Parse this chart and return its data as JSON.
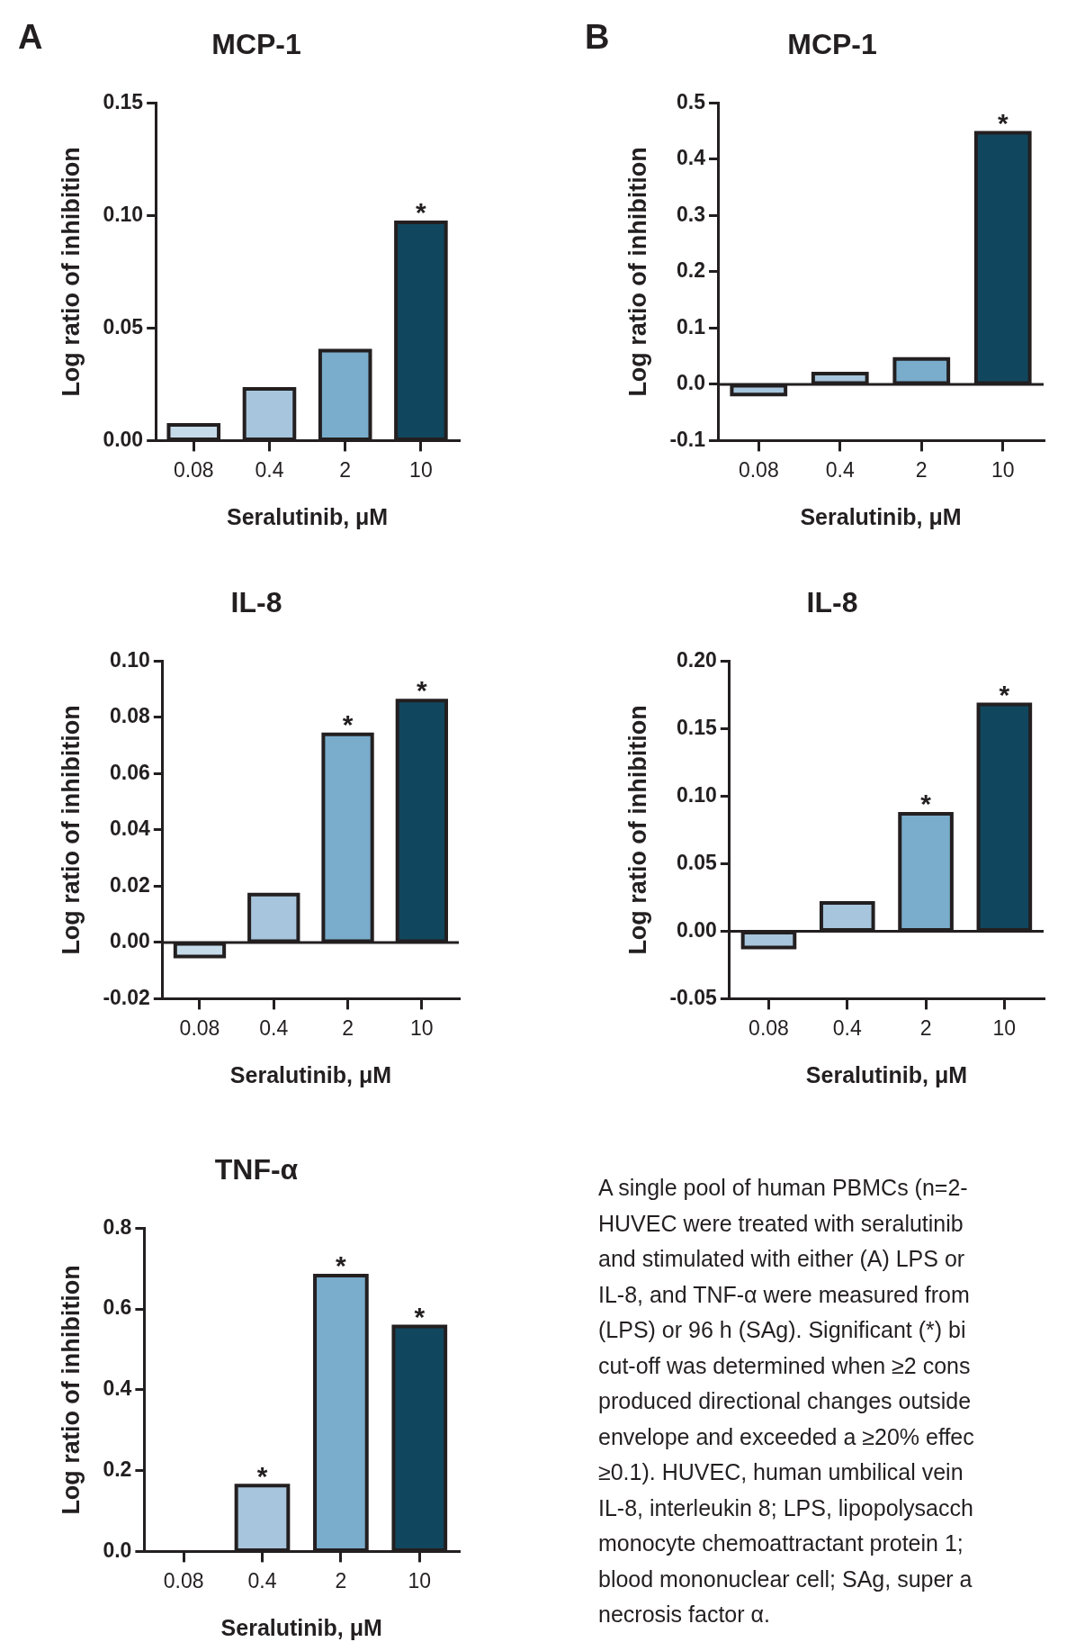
{
  "chart_data": [
    {
      "type": "bar",
      "title": "MCP-1",
      "xlabel": "Seralutinib, μM",
      "ylabel": "Log ratio of inhibition",
      "categories": [
        "0.08",
        "0.4",
        "2",
        "10"
      ],
      "values": [
        0.007,
        0.023,
        0.04,
        0.097
      ],
      "colors": [
        "#c5dbea",
        "#a7c5dc",
        "#7aaccb",
        "#11475e"
      ],
      "ylim": [
        0,
        0.15
      ],
      "yticks": [
        {
          "value": 0,
          "label": "0.00"
        },
        {
          "value": 0.05,
          "label": "0.05"
        },
        {
          "value": 0.1,
          "label": "0.10"
        },
        {
          "value": 0.15,
          "label": "0.15"
        }
      ],
      "annotations": [
        "A",
        {
          "text": "*",
          "x": "10",
          "y": 0.097
        }
      ]
    },
    {
      "type": "bar",
      "title": "MCP-1",
      "xlabel": "Seralutinib, μM",
      "ylabel": "Log ratio of inhibition",
      "categories": [
        "0.08",
        "0.4",
        "2",
        "10"
      ],
      "values": [
        -0.018,
        0.019,
        0.045,
        0.447
      ],
      "colors": [
        "#a7c5dc",
        "#a7c5dc",
        "#7aaccb",
        "#11475e"
      ],
      "ylim": [
        -0.1,
        0.5
      ],
      "yticks": [
        {
          "value": -0.1,
          "label": "-0.1"
        },
        {
          "value": 0,
          "label": "0.0"
        },
        {
          "value": 0.1,
          "label": "0.1"
        },
        {
          "value": 0.2,
          "label": "0.2"
        },
        {
          "value": 0.3,
          "label": "0.3"
        },
        {
          "value": 0.4,
          "label": "0.4"
        },
        {
          "value": 0.5,
          "label": "0.5"
        }
      ],
      "annotations": [
        "B",
        {
          "text": "*",
          "x": "10",
          "y": 0.447
        }
      ]
    },
    {
      "type": "bar",
      "title": "IL-8",
      "xlabel": "Seralutinib, μM",
      "ylabel": "Log ratio of inhibition",
      "categories": [
        "0.08",
        "0.4",
        "2",
        "10"
      ],
      "values": [
        -0.005,
        0.017,
        0.074,
        0.086
      ],
      "colors": [
        "#c5dbea",
        "#a7c5dc",
        "#7aaccb",
        "#11475e"
      ],
      "ylim": [
        -0.02,
        0.1
      ],
      "yticks": [
        {
          "value": -0.02,
          "label": "-0.02"
        },
        {
          "value": 0,
          "label": "0.00"
        },
        {
          "value": 0.02,
          "label": "0.02"
        },
        {
          "value": 0.04,
          "label": "0.04"
        },
        {
          "value": 0.06,
          "label": "0.06"
        },
        {
          "value": 0.08,
          "label": "0.08"
        },
        {
          "value": 0.1,
          "label": "0.10"
        }
      ],
      "annotations": [
        {
          "text": "*",
          "x": "2",
          "y": 0.074
        },
        {
          "text": "*",
          "x": "10",
          "y": 0.086
        }
      ]
    },
    {
      "type": "bar",
      "title": "IL-8",
      "xlabel": "Seralutinib, μM",
      "ylabel": "Log ratio of inhibition",
      "categories": [
        "0.08",
        "0.4",
        "2",
        "10"
      ],
      "values": [
        -0.012,
        0.021,
        0.087,
        0.168
      ],
      "colors": [
        "#a7c5dc",
        "#a7c5dc",
        "#7aaccb",
        "#11475e"
      ],
      "ylim": [
        -0.05,
        0.2
      ],
      "yticks": [
        {
          "value": -0.05,
          "label": "-0.05"
        },
        {
          "value": 0,
          "label": "0.00"
        },
        {
          "value": 0.05,
          "label": "0.05"
        },
        {
          "value": 0.1,
          "label": "0.10"
        },
        {
          "value": 0.15,
          "label": "0.15"
        },
        {
          "value": 0.2,
          "label": "0.20"
        }
      ],
      "annotations": [
        {
          "text": "*",
          "x": "2",
          "y": 0.087
        },
        {
          "text": "*",
          "x": "10",
          "y": 0.168
        }
      ]
    },
    {
      "type": "bar",
      "title": "TNF-α",
      "xlabel": "Seralutinib, μM",
      "ylabel": "Log ratio of inhibition",
      "categories": [
        "0.08",
        "0.4",
        "2",
        "10"
      ],
      "values": [
        null,
        0.163,
        0.683,
        0.557
      ],
      "colors": [
        "#c5dbea",
        "#a7c5dc",
        "#7aaccb",
        "#11475e"
      ],
      "ylim": [
        0,
        0.8
      ],
      "yticks": [
        {
          "value": 0,
          "label": "0.0"
        },
        {
          "value": 0.2,
          "label": "0.2"
        },
        {
          "value": 0.4,
          "label": "0.4"
        },
        {
          "value": 0.6,
          "label": "0.6"
        },
        {
          "value": 0.8,
          "label": "0.8"
        }
      ],
      "annotations": [
        {
          "text": "*",
          "x": "0.4",
          "y": 0.163
        },
        {
          "text": "*",
          "x": "2",
          "y": 0.683
        },
        {
          "text": "*",
          "x": "10",
          "y": 0.557
        }
      ]
    },
    {
      "type": "other",
      "annotations": [
        "A single pool of human PBMCs (n=2-\nHUVEC were treated with seralutinib\nand stimulated with either (A) LPS or\nIL-8, and TNF-α were measured from\n(LPS) or 96 h (SAg). Significant (*) bi\ncut-off was determined when ≥2 cons\nproduced directional changes outside\nenvelope and exceeded a ≥20% effec\n≥0.1). HUVEC, human umbilical vein\nIL-8, interleukin 8; LPS, lipopolysacch\nmonocyte chemoattractant protein 1;\nblood mononuclear cell; SAg, super a\nnecrosis factor α."
      ]
    }
  ]
}
